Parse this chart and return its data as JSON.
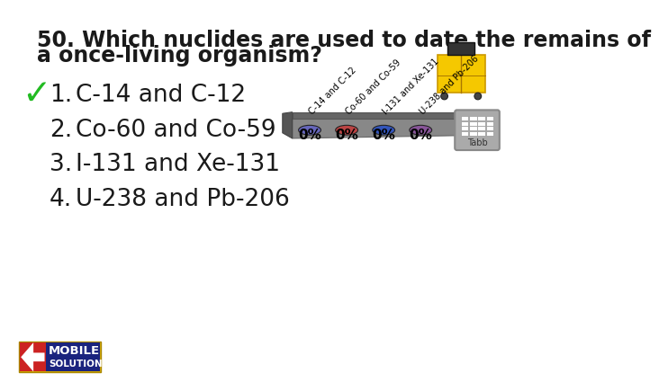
{
  "title_line1": "50. Which nuclides are used to date the remains of",
  "title_line2": "a once-living organism?",
  "options": [
    "C-14 and C-12",
    "Co-60 and Co-59",
    "I-131 and Xe-131",
    "U-238 and Pb-206"
  ],
  "correct_index": 0,
  "checkmark_color": "#22bb22",
  "option_color": "#1a1a1a",
  "title_color": "#1a1a1a",
  "bg_color": "#ffffff",
  "poll_button_colors": [
    "#6666bb",
    "#bb4444",
    "#3355bb",
    "#885599"
  ],
  "poll_percentages": [
    "0%",
    "0%",
    "0%",
    "0%"
  ],
  "poll_labels": [
    "C-14 and C-12",
    "Co-60 and Co-59",
    "I-131 and Xe-131",
    "U-238 and Pb-206"
  ],
  "title_fontsize": 17,
  "option_fontsize": 19,
  "poll_pct_fontsize": 11,
  "poll_label_fontsize": 7
}
